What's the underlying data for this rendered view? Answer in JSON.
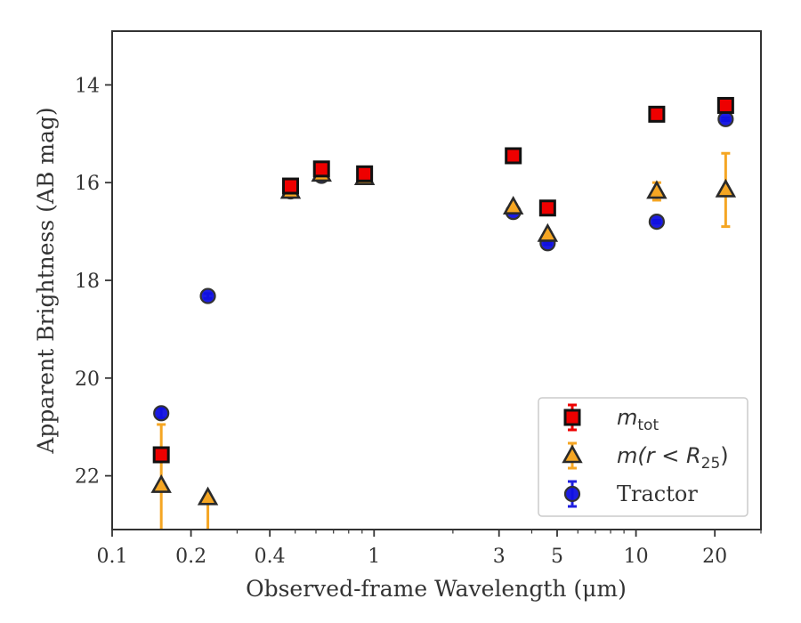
{
  "chart_data": {
    "type": "scatter",
    "xlabel": "Observed-frame Wavelength (μm)",
    "ylabel": "Apparent Brightness (AB mag)",
    "xscale": "log",
    "xlim": [
      0.1,
      30
    ],
    "ylim": [
      23.1,
      12.9
    ],
    "y_inverted": true,
    "grid": false,
    "legend_position": "lower-right",
    "xticks": [
      {
        "value": 0.1,
        "label": "0.1"
      },
      {
        "value": 0.2,
        "label": "0.2"
      },
      {
        "value": 0.4,
        "label": "0.4"
      },
      {
        "value": 1,
        "label": "1"
      },
      {
        "value": 3,
        "label": "3"
      },
      {
        "value": 5,
        "label": "5"
      },
      {
        "value": 10,
        "label": "10"
      },
      {
        "value": 20,
        "label": "20"
      }
    ],
    "yticks": [
      {
        "value": 14,
        "label": "14"
      },
      {
        "value": 16,
        "label": "16"
      },
      {
        "value": 18,
        "label": "18"
      },
      {
        "value": 20,
        "label": "20"
      },
      {
        "value": 22,
        "label": "22"
      }
    ],
    "series": [
      {
        "key": "tractor",
        "name": "Tractor",
        "marker": "circle",
        "face_color": "#1010e0",
        "edge_color": "#333333",
        "error_color": "#1f1fe0",
        "points": [
          {
            "x": 0.154,
            "y": 20.72,
            "err": 0.1
          },
          {
            "x": 0.232,
            "y": 18.32,
            "err": 0.05
          },
          {
            "x": 0.48,
            "y": 16.18,
            "err": 0.03
          },
          {
            "x": 0.63,
            "y": 15.86,
            "err": 0.03
          },
          {
            "x": 0.92,
            "y": 15.86,
            "err": 0.03
          },
          {
            "x": 3.4,
            "y": 16.6,
            "err": 0.03
          },
          {
            "x": 4.6,
            "y": 17.24,
            "err": 0.03
          },
          {
            "x": 12.0,
            "y": 16.8,
            "err": 0.03
          },
          {
            "x": 22.0,
            "y": 14.7,
            "err": 0.03
          }
        ]
      },
      {
        "key": "mr25",
        "name": "m(r < R25)",
        "marker": "triangle",
        "face_color": "#f5a623",
        "edge_color": "#2a2a2a",
        "error_color": "#f5a623",
        "points": [
          {
            "x": 0.154,
            "y": 22.2,
            "err_up": 1.25,
            "err_down": 1.1
          },
          {
            "x": 0.232,
            "y": 22.45,
            "err_up": 0.0,
            "err_down": 1.1
          },
          {
            "x": 0.48,
            "y": 16.18,
            "err_up": 0.05,
            "err_down": 0.05
          },
          {
            "x": 0.63,
            "y": 15.83,
            "err_up": 0.05,
            "err_down": 0.05
          },
          {
            "x": 0.92,
            "y": 15.9,
            "err_up": 0.05,
            "err_down": 0.05
          },
          {
            "x": 3.4,
            "y": 16.5,
            "err_up": 0.05,
            "err_down": 0.05
          },
          {
            "x": 4.6,
            "y": 17.06,
            "err_up": 0.05,
            "err_down": 0.05
          },
          {
            "x": 12.0,
            "y": 16.18,
            "err_up": 0.18,
            "err_down": 0.18
          },
          {
            "x": 22.0,
            "y": 16.15,
            "err_up": 0.75,
            "err_down": 0.75
          }
        ]
      },
      {
        "key": "mtot",
        "name": "m_tot",
        "marker": "square",
        "face_color": "#ee0000",
        "edge_color": "#111111",
        "error_color": "#ee0000",
        "points": [
          {
            "x": 0.154,
            "y": 21.57,
            "err": 0.08
          },
          {
            "x": 0.48,
            "y": 16.07,
            "err": 0.03
          },
          {
            "x": 0.63,
            "y": 15.72,
            "err": 0.03
          },
          {
            "x": 0.92,
            "y": 15.82,
            "err": 0.03
          },
          {
            "x": 3.4,
            "y": 15.45,
            "err": 0.03
          },
          {
            "x": 4.6,
            "y": 16.52,
            "err": 0.03
          },
          {
            "x": 12.0,
            "y": 14.6,
            "err": 0.03
          },
          {
            "x": 22.0,
            "y": 14.42,
            "err": 0.03
          }
        ]
      }
    ],
    "legend": [
      {
        "series": "mtot",
        "prefix": "m",
        "subscript": "tot",
        "suffix": ""
      },
      {
        "series": "mr25",
        "prefix": "m(r < R",
        "subscript": "25",
        "suffix": ")"
      },
      {
        "series": "tractor",
        "prefix": "Tractor",
        "subscript": "",
        "suffix": ""
      }
    ]
  }
}
